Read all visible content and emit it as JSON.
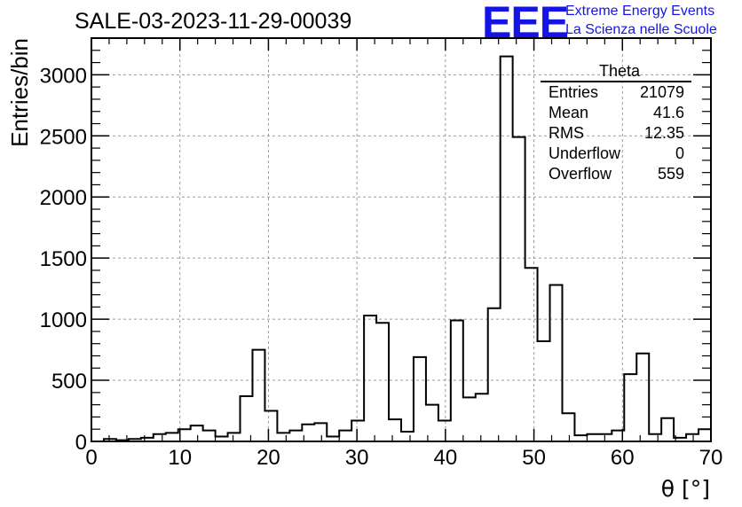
{
  "header": {
    "title": "SALE-03-2023-11-29-00039",
    "logo_text": "EEE",
    "logo_line1": "Extreme Energy Events",
    "logo_line2": "La Scienza nelle Scuole",
    "brand_color": "#1414e6"
  },
  "stats": {
    "title": "Theta",
    "rows": [
      {
        "label": "Entries",
        "value": "21079"
      },
      {
        "label": "Mean",
        "value": "41.6"
      },
      {
        "label": "RMS",
        "value": "12.35"
      },
      {
        "label": "Underflow",
        "value": "0"
      },
      {
        "label": "Overflow",
        "value": "559"
      }
    ]
  },
  "chart_data": {
    "type": "bar",
    "style": "step-histogram",
    "xlabel": "θ [°]",
    "ylabel": "Entries/bin",
    "xlim": [
      0,
      70
    ],
    "ylim": [
      0,
      3300
    ],
    "grid": true,
    "x_ticks": [
      "0",
      "10",
      "20",
      "30",
      "40",
      "50",
      "60",
      "70"
    ],
    "y_ticks": [
      "0",
      "500",
      "1000",
      "1500",
      "2000",
      "2500",
      "3000"
    ],
    "bin_edges_start": 0,
    "bin_width": 1.4,
    "values": [
      0,
      20,
      10,
      20,
      30,
      60,
      70,
      100,
      130,
      90,
      40,
      70,
      370,
      750,
      250,
      70,
      90,
      140,
      150,
      40,
      90,
      170,
      1030,
      970,
      180,
      80,
      690,
      300,
      170,
      990,
      360,
      390,
      1090,
      3150,
      2490,
      1420,
      820,
      1280,
      230,
      50,
      60,
      60,
      90,
      550,
      720,
      60,
      190,
      30,
      60,
      100
    ]
  }
}
